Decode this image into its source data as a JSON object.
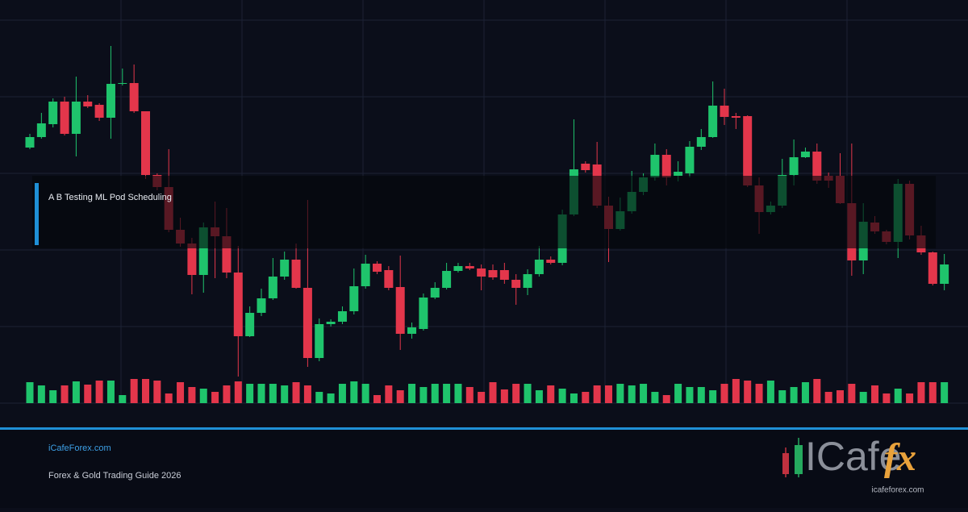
{
  "chart_data": {
    "type": "candlestick",
    "up_color": "#1fc46c",
    "down_color": "#e3364b",
    "ylim": [
      0,
      475
    ],
    "vlim": [
      0,
      40
    ],
    "open": [
      317,
      330,
      346,
      374,
      334,
      374,
      370,
      354,
      396,
      397,
      362,
      283,
      268,
      215,
      198,
      159,
      218,
      207,
      162,
      83,
      112,
      130,
      157,
      178,
      143,
      56,
      98,
      101,
      114,
      145,
      173,
      165,
      144,
      86,
      92,
      131,
      143,
      164,
      170,
      167,
      165,
      165,
      153,
      143,
      160,
      178,
      174,
      234,
      297,
      296,
      245,
      216,
      238,
      262,
      280,
      308,
      282,
      285,
      318,
      330,
      369,
      356,
      356,
      270,
      237,
      245,
      283,
      305,
      312,
      282,
      282,
      248,
      177,
      224,
      213,
      200,
      272,
      208,
      187,
      148
    ],
    "high": [
      334,
      360,
      378,
      380,
      405,
      382,
      372,
      443,
      415,
      420,
      362,
      285,
      315,
      230,
      205,
      224,
      250,
      242,
      195,
      120,
      142,
      180,
      188,
      198,
      252,
      105,
      104,
      120,
      167,
      184,
      176,
      170,
      183,
      100,
      136,
      150,
      174,
      174,
      174,
      172,
      172,
      174,
      160,
      166,
      195,
      182,
      240,
      352,
      300,
      324,
      256,
      255,
      288,
      285,
      322,
      315,
      300,
      325,
      340,
      399,
      390,
      360,
      357,
      280,
      250,
      303,
      327,
      317,
      322,
      286,
      310,
      322,
      248,
      232,
      215,
      278,
      276,
      220,
      188,
      185
    ],
    "low": [
      315,
      328,
      342,
      332,
      306,
      366,
      350,
      328,
      394,
      360,
      278,
      264,
      212,
      194,
      135,
      137,
      155,
      155,
      33,
      82,
      108,
      128,
      153,
      142,
      45,
      52,
      95,
      98,
      110,
      142,
      160,
      140,
      66,
      80,
      90,
      129,
      141,
      162,
      165,
      140,
      153,
      148,
      122,
      134,
      157,
      172,
      171,
      232,
      286,
      242,
      175,
      214,
      235,
      258,
      276,
      270,
      275,
      280,
      314,
      329,
      345,
      340,
      268,
      210,
      234,
      242,
      270,
      304,
      272,
      267,
      247,
      158,
      160,
      210,
      197,
      180,
      203,
      184,
      146,
      140
    ],
    "close": [
      330,
      347,
      374,
      334,
      374,
      368,
      354,
      396,
      397,
      362,
      283,
      268,
      215,
      198,
      159,
      218,
      207,
      162,
      83,
      112,
      130,
      157,
      178,
      143,
      56,
      98,
      101,
      114,
      145,
      173,
      163,
      143,
      86,
      94,
      131,
      143,
      164,
      170,
      167,
      157,
      156,
      153,
      143,
      160,
      178,
      174,
      234,
      290,
      289,
      245,
      216,
      238,
      262,
      280,
      308,
      280,
      287,
      318,
      330,
      369,
      355,
      354,
      270,
      237,
      245,
      283,
      305,
      312,
      276,
      276,
      248,
      177,
      225,
      213,
      200,
      272,
      208,
      187,
      148,
      172
    ],
    "volume": [
      26,
      22,
      16,
      22,
      27,
      23,
      28,
      28,
      10,
      30,
      30,
      28,
      12,
      26,
      20,
      18,
      14,
      22,
      27,
      24,
      24,
      24,
      22,
      26,
      22,
      14,
      12,
      24,
      27,
      24,
      10,
      22,
      16,
      24,
      20,
      24,
      24,
      24,
      20,
      14,
      26,
      17,
      24,
      24,
      16,
      22,
      18,
      12,
      14,
      22,
      22,
      24,
      22,
      24,
      14,
      10,
      24,
      20,
      20,
      16,
      24,
      30,
      28,
      24,
      28,
      16,
      20,
      26,
      30,
      14,
      16,
      24,
      14,
      22,
      12,
      18,
      12,
      26,
      26,
      26
    ]
  },
  "overlay_label": "A B Testing ML Pod Scheduling",
  "footer": {
    "site": "iCafeForex.com",
    "subtitle": "Forex & Gold Trading Guide 2026"
  },
  "logo": {
    "name": "ICafe",
    "accent": "fx",
    "url": "icafeforex.com"
  }
}
